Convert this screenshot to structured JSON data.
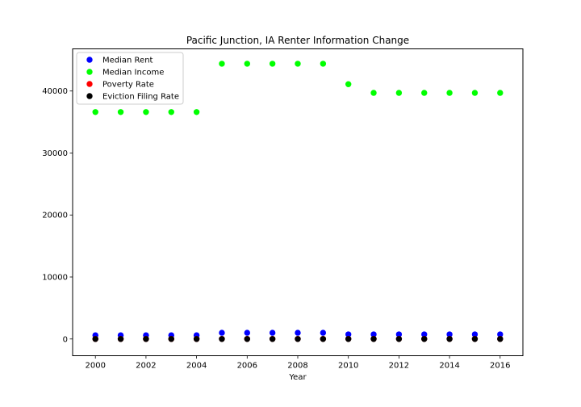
{
  "chart_data": {
    "type": "scatter",
    "title": "Pacific Junction, IA Renter Information Change",
    "xlabel": "Year",
    "ylabel": "",
    "xlim": [
      1999.1,
      2016.9
    ],
    "ylim": [
      -2700,
      46800
    ],
    "xticks": [
      2000,
      2002,
      2004,
      2006,
      2008,
      2010,
      2012,
      2014,
      2016
    ],
    "yticks": [
      0,
      10000,
      20000,
      30000,
      40000
    ],
    "x": [
      2000,
      2001,
      2002,
      2003,
      2004,
      2005,
      2006,
      2007,
      2008,
      2009,
      2010,
      2011,
      2012,
      2013,
      2014,
      2015,
      2016
    ],
    "legend_position": "upper-left",
    "grid": false,
    "series": [
      {
        "name": "Median Rent",
        "color": "#0000ff",
        "values": [
          600,
          600,
          600,
          600,
          600,
          1000,
          1000,
          1000,
          1000,
          1000,
          750,
          750,
          750,
          750,
          750,
          750,
          750
        ]
      },
      {
        "name": "Median Income",
        "color": "#00ff00",
        "values": [
          36600,
          36600,
          36600,
          36600,
          36600,
          44400,
          44400,
          44400,
          44400,
          44400,
          41100,
          39700,
          39700,
          39700,
          39700,
          39700,
          39700
        ]
      },
      {
        "name": "Poverty Rate",
        "color": "#ff0000",
        "values": [
          10,
          10,
          10,
          10,
          10,
          15,
          15,
          15,
          15,
          15,
          12,
          12,
          12,
          12,
          12,
          12,
          12
        ]
      },
      {
        "name": "Eviction Filing Rate",
        "color": "#000000",
        "values": [
          0,
          0,
          0,
          0,
          0,
          0,
          0,
          0,
          0,
          0,
          0,
          0,
          0,
          0,
          0,
          0,
          0
        ]
      }
    ]
  }
}
